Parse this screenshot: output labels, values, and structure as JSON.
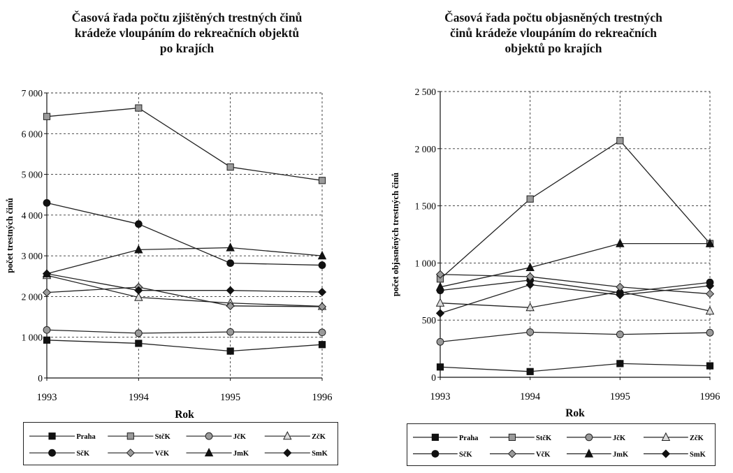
{
  "charts": [
    {
      "id": "left",
      "title_lines": [
        "Časová řada počtu zjištěných trestných činů",
        "krádeže vloupáním do rekreačních objektů",
        "po krajích"
      ],
      "chart_data": {
        "type": "line",
        "title": "Časová řada počtu zjištěných trestných činů krádeže vloupáním do rekreačních objektů po krajích",
        "xlabel": "Rok",
        "ylabel": "počet trestných činů",
        "x": [
          "1993",
          "1994",
          "1995",
          "1996"
        ],
        "ylim": [
          0,
          7000
        ],
        "yticks": [
          0,
          1000,
          2000,
          3000,
          4000,
          5000,
          6000,
          7000
        ],
        "ytick_labels": [
          "0",
          "1 000",
          "2 000",
          "3 000",
          "4 000",
          "5 000",
          "6 000",
          "7 000"
        ],
        "grid": "dashed",
        "legend_position": "bottom",
        "series": [
          {
            "name": "Praha",
            "marker": "square-filled",
            "values": [
              930,
              850,
              660,
              820
            ]
          },
          {
            "name": "StčK",
            "marker": "square-hatched",
            "values": [
              6420,
              6630,
              5180,
              4850
            ]
          },
          {
            "name": "JčK",
            "marker": "circle-hatched",
            "values": [
              1180,
              1100,
              1130,
              1120
            ]
          },
          {
            "name": "ZčK",
            "marker": "triangle-open",
            "values": [
              2520,
              1980,
              1840,
              1760
            ]
          },
          {
            "name": "SčK",
            "marker": "circle-filled",
            "values": [
              4300,
              3780,
              2820,
              2770
            ]
          },
          {
            "name": "VčK",
            "marker": "diamond-hatched",
            "values": [
              2100,
              2230,
              1770,
              1750
            ]
          },
          {
            "name": "JmK",
            "marker": "triangle-filled",
            "values": [
              2560,
              3150,
              3200,
              3000
            ]
          },
          {
            "name": "SmK",
            "marker": "diamond-filled",
            "values": [
              2560,
              2150,
              2150,
              2110
            ]
          }
        ]
      }
    },
    {
      "id": "right",
      "title_lines": [
        "Časová řada počtu objasněných trestných",
        "činů krádeže vloupáním do rekreačních",
        "objektů po krajích"
      ],
      "chart_data": {
        "type": "line",
        "title": "Časová řada počtu objasněných trestných činů krádeže vloupáním do rekreačních objektů po krajích",
        "xlabel": "Rok",
        "ylabel": "počet objasněných trestných činů",
        "x": [
          "1993",
          "1994",
          "1995",
          "1996"
        ],
        "ylim": [
          0,
          2500
        ],
        "yticks": [
          0,
          500,
          1000,
          1500,
          2000,
          2500
        ],
        "ytick_labels": [
          "0",
          "500",
          "1 000",
          "1 500",
          "2 000",
          "2 500"
        ],
        "grid": "dashed",
        "legend_position": "bottom",
        "series": [
          {
            "name": "Praha",
            "marker": "square-filled",
            "values": [
              90,
              50,
              120,
              100
            ]
          },
          {
            "name": "StčK",
            "marker": "square-hatched",
            "values": [
              860,
              1560,
              2070,
              1170
            ]
          },
          {
            "name": "JčK",
            "marker": "circle-hatched",
            "values": [
              310,
              395,
              375,
              390
            ]
          },
          {
            "name": "ZčK",
            "marker": "triangle-open",
            "values": [
              650,
              610,
              750,
              580
            ]
          },
          {
            "name": "SčK",
            "marker": "circle-filled",
            "values": [
              760,
              850,
              740,
              830
            ]
          },
          {
            "name": "VčK",
            "marker": "diamond-hatched",
            "values": [
              900,
              880,
              790,
              730
            ]
          },
          {
            "name": "JmK",
            "marker": "triangle-filled",
            "values": [
              790,
              960,
              1170,
              1170
            ]
          },
          {
            "name": "SmK",
            "marker": "diamond-filled",
            "values": [
              560,
              810,
              720,
              800
            ]
          }
        ]
      }
    }
  ]
}
